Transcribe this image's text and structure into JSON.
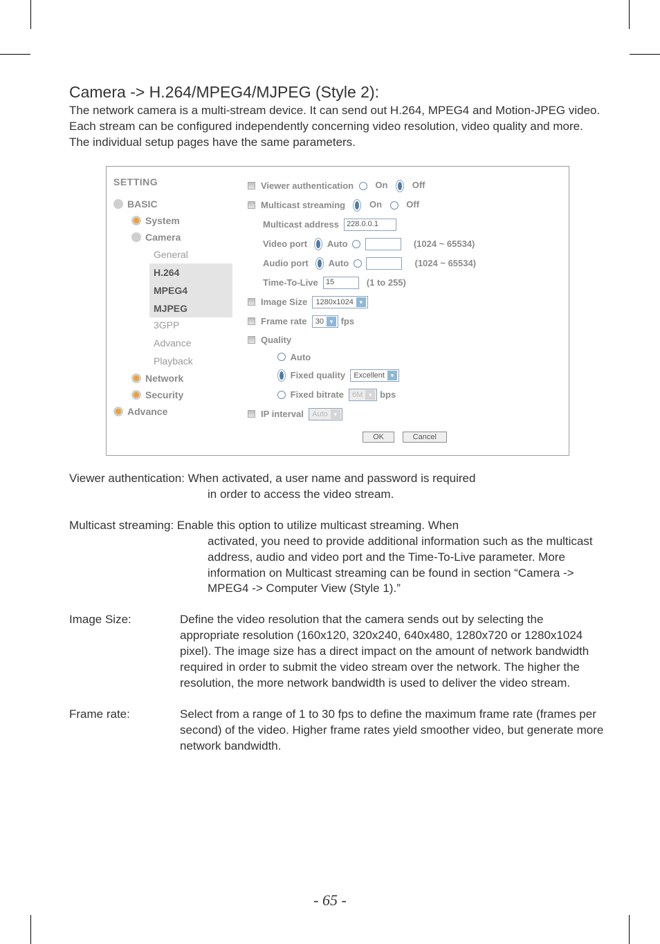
{
  "heading": "Camera -> H.264/MPEG4/MJPEG (Style 2):",
  "intro": "The network camera is a multi-stream device. It can send out H.264, MPEG4 and Motion-JPEG video. Each stream can be configured independently concerning video resolution, video quality and more. The individual setup pages have the same parameters.",
  "sidebar": {
    "setting": "SETTING",
    "basic": "BASIC",
    "system": "System",
    "camera": "Camera",
    "camera_items": {
      "general": "General",
      "h264": "H.264",
      "mpeg4": "MPEG4",
      "mjpeg": "MJPEG",
      "gpp": "3GPP",
      "advance": "Advance",
      "playback": "Playback"
    },
    "network": "Network",
    "security": "Security",
    "advance2": "Advance"
  },
  "panel": {
    "viewer_auth": "Viewer authentication",
    "on": "On",
    "off": "Off",
    "multicast_streaming": "Multicast streaming",
    "multicast_address": "Multicast address",
    "multicast_address_val": "228.0.0.1",
    "video_port": "Video port",
    "auto": "Auto",
    "port_range": "(1024 ~ 65534)",
    "audio_port": "Audio port",
    "ttl": "Time-To-Live",
    "ttl_val": "15",
    "ttl_range": "(1 to 255)",
    "image_size": "Image Size",
    "image_size_val": "1280x1024",
    "frame_rate": "Frame rate",
    "frame_rate_val": "30",
    "fps": "fps",
    "quality": "Quality",
    "q_auto": "Auto",
    "q_fixed_quality": "Fixed quality",
    "q_fixed_quality_val": "Excellent",
    "q_fixed_bitrate": "Fixed bitrate",
    "q_fixed_bitrate_val": "6M",
    "bps": "bps",
    "ip_interval": "IP interval",
    "ip_interval_val": "Auto",
    "ok": "OK",
    "cancel": "Cancel"
  },
  "defs": {
    "viewer_auth_inline": "Viewer authentication: When activated, a user name and password is required",
    "viewer_auth_rest": "in order to access the video stream.",
    "multicast_inline": "Multicast streaming: Enable this option to utilize multicast streaming. When",
    "multicast_rest": "activated, you need to provide additional information such as the multicast address, audio and video port and the Time-To-Live parameter. More information on Multicast streaming can be found in section “Camera -> MPEG4 -> Computer View (Style 1).”",
    "image_size_term": "Image Size:",
    "image_size_body": "Define the video resolution that the camera sends out by selecting the appropriate resolution (160x120, 320x240, 640x480, 1280x720 or 1280x1024 pixel). The image size has a direct impact on the amount of network bandwidth required in order to submit the video stream over the network. The higher the resolution, the more network bandwidth is used to deliver the video stream.",
    "frame_rate_term": "Frame rate:",
    "frame_rate_body": "Select from a range of 1 to 30 fps to define the maximum frame rate (frames per second) of the video. Higher frame rates yield smoother video, but generate more network bandwidth."
  },
  "page_number": "- 65 -"
}
